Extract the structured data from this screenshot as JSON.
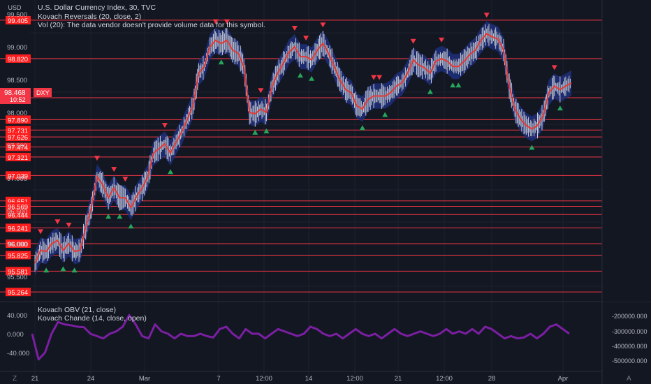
{
  "header": {
    "currency_button": "USD",
    "symbol_line": "U.S. Dollar Currency Index, 30, TVC",
    "indicator_1": "Kovach Reversals (20, close, 2)",
    "indicator_2": "Vol (20): The data vendor doesn't provide volume data for this symbol."
  },
  "lower_pane": {
    "indicator_1": "Kovach OBV (21, close)",
    "indicator_2": "Kovach Chande (14, close, open)",
    "left_ticks": [
      "40.000",
      "0.000",
      "-40.000"
    ],
    "right_ticks": [
      "-200000.000",
      "-300000.000",
      "-400000.000",
      "-500000.000"
    ]
  },
  "footer": {
    "left_button": "Z",
    "right_button": "A",
    "x_ticks": [
      "21",
      "24",
      "Mar",
      "7",
      "12:00",
      "14",
      "12:00",
      "21",
      "12:00",
      "28",
      "Apr"
    ]
  },
  "price_axis": {
    "ticks": [
      "99.500",
      "99.000",
      "98.500",
      "98.000",
      "97.500",
      "97.000",
      "96.500",
      "96.000",
      "95.500"
    ],
    "last_price_label": "98.468",
    "countdown": "10:52",
    "symbol_tag": "DXY"
  },
  "colors": {
    "background": "#131722",
    "level_line": "#f23645",
    "price_line": "#e53935",
    "band": "#1e2f7a",
    "candle": "#c6c9d1",
    "up_marker": "#26a65b",
    "down_marker": "#f23645",
    "oscillator": "#7b1fa2"
  },
  "chart_data": [
    {
      "type": "line",
      "title": "U.S. Dollar Currency Index, 30, TVC",
      "ylim": [
        95.3,
        99.75
      ],
      "x_labels": [
        "21",
        "24",
        "Mar",
        "7",
        "12:00",
        "14",
        "12:00",
        "21",
        "12:00",
        "28",
        "Apr"
      ],
      "horizontal_levels": [
        99.405,
        98.82,
        98.224,
        97.89,
        97.731,
        97.626,
        97.474,
        97.321,
        97.039,
        96.651,
        96.569,
        96.444,
        96.241,
        96.0,
        95.825,
        95.581,
        95.264
      ],
      "last_price": 98.468,
      "series": [
        {
          "values": [
            95.7,
            95.9,
            95.88,
            96.0,
            96.05,
            95.9,
            96.0,
            95.88,
            95.9,
            96.25,
            96.55,
            97.02,
            96.9,
            96.7,
            96.85,
            96.7,
            96.7,
            96.55,
            96.72,
            96.85,
            97.02,
            97.38,
            97.45,
            97.52,
            97.38,
            97.55,
            97.7,
            97.9,
            98.1,
            98.6,
            98.7,
            99.0,
            99.1,
            99.05,
            99.1,
            98.95,
            98.9,
            98.7,
            98.0,
            97.98,
            98.05,
            98.0,
            98.4,
            98.6,
            98.75,
            98.92,
            99.0,
            98.85,
            98.85,
            98.8,
            98.95,
            99.05,
            98.9,
            98.7,
            98.5,
            98.35,
            98.3,
            98.1,
            98.05,
            98.2,
            98.25,
            98.25,
            98.25,
            98.3,
            98.4,
            98.45,
            98.6,
            98.8,
            98.72,
            98.68,
            98.6,
            98.78,
            98.82,
            98.78,
            98.7,
            98.7,
            98.78,
            98.88,
            98.95,
            99.1,
            99.2,
            99.15,
            99.12,
            98.95,
            98.4,
            98.05,
            97.9,
            97.8,
            97.75,
            97.8,
            97.95,
            98.3,
            98.4,
            98.35,
            98.4,
            98.45
          ]
        },
        {
          "name": "Kovach Chande (14, close, open)",
          "values": [
            0,
            -55,
            -40,
            0,
            25,
            20,
            18,
            15,
            14,
            0,
            -5,
            -10,
            0,
            5,
            15,
            40,
            20,
            -5,
            -10,
            20,
            5,
            0,
            -10,
            0,
            -5,
            -5,
            0,
            -5,
            -8,
            10,
            15,
            0,
            -10,
            10,
            0,
            0,
            -10,
            0,
            10,
            5,
            0,
            -5,
            0,
            15,
            10,
            0,
            -5,
            0,
            -10,
            0,
            10,
            0,
            -5,
            0,
            -10,
            0,
            10,
            0,
            -5,
            0,
            5,
            0,
            -5,
            0,
            10,
            0,
            5,
            0,
            10,
            0,
            15,
            10,
            0,
            -10,
            -5,
            -10,
            -8,
            0,
            -10,
            0,
            15,
            20,
            10,
            0
          ]
        }
      ]
    }
  ]
}
